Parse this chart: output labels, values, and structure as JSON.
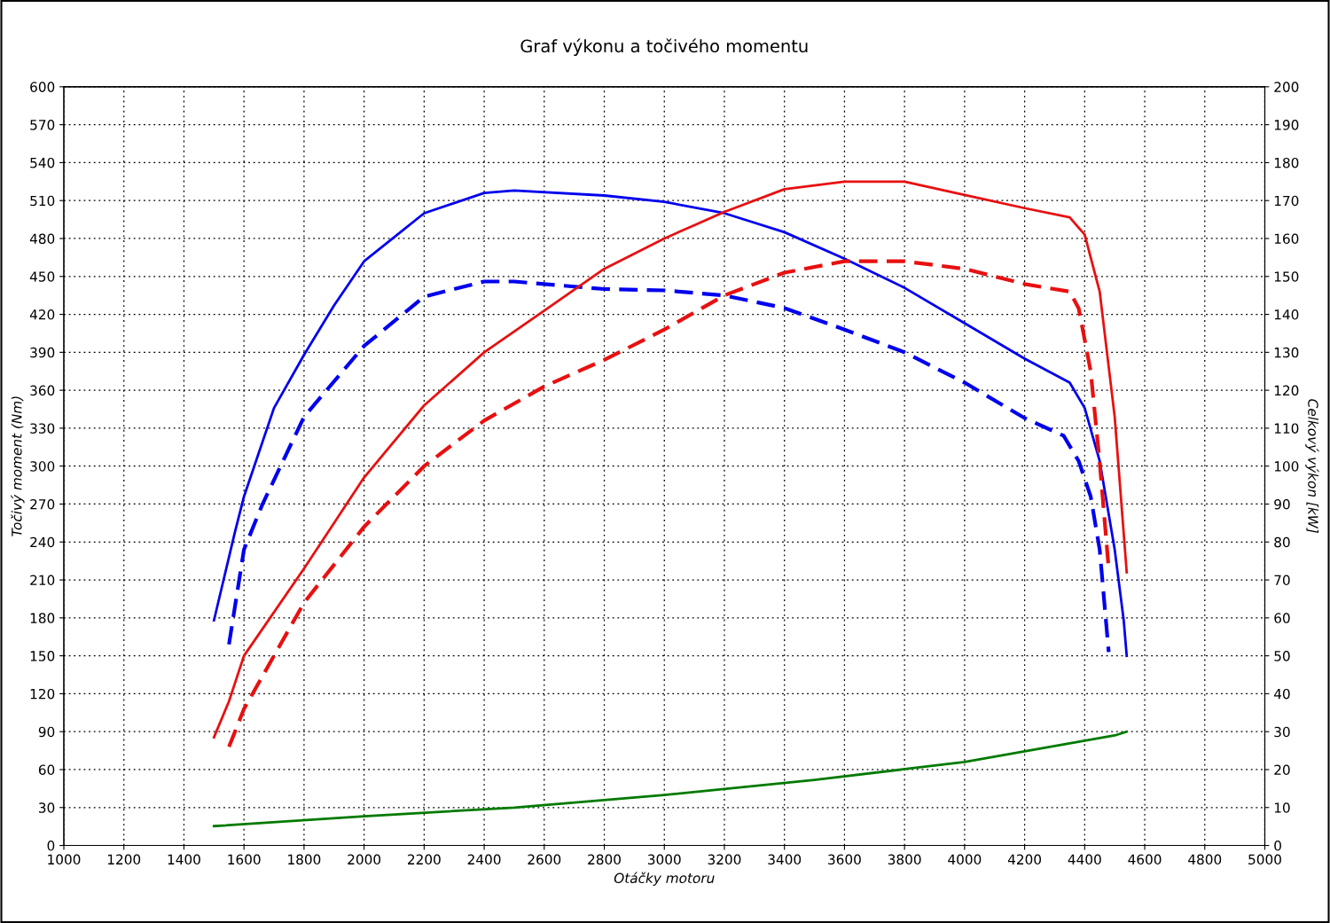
{
  "chart_data": {
    "type": "line",
    "title": "Graf výkonu a točivého momentu",
    "xlabel": "Otáčky motoru",
    "ylabel": "Točivý moment (Nm)",
    "y2label": "Celkový výkon [kW]",
    "xlim": [
      1000,
      5000
    ],
    "xticks": [
      1000,
      1200,
      1400,
      1600,
      1800,
      2000,
      2200,
      2400,
      2600,
      2800,
      3000,
      3200,
      3400,
      3600,
      3800,
      4000,
      4200,
      4400,
      4600,
      4800,
      5000
    ],
    "ylim": [
      0,
      600
    ],
    "yticks": [
      0,
      30,
      60,
      90,
      120,
      150,
      180,
      210,
      240,
      270,
      300,
      330,
      360,
      390,
      420,
      450,
      480,
      510,
      540,
      570,
      600
    ],
    "y2lim": [
      0,
      200
    ],
    "y2ticks": [
      0,
      10,
      20,
      30,
      40,
      50,
      60,
      70,
      80,
      90,
      100,
      110,
      120,
      130,
      140,
      150,
      160,
      170,
      180,
      190,
      200
    ],
    "grid": true,
    "legend": false,
    "series": [
      {
        "color": "#0000ee",
        "line_style": "solid",
        "axis": "y",
        "x": [
          1500,
          1570,
          1600,
          1700,
          1800,
          1900,
          2000,
          2200,
          2400,
          2500,
          2800,
          3000,
          3200,
          3400,
          3600,
          3800,
          4000,
          4200,
          4350,
          4400,
          4450,
          4500,
          4530,
          4540
        ],
        "values": [
          178,
          248,
          276,
          346,
          388,
          427,
          462,
          500,
          516,
          518,
          514,
          509,
          500,
          485,
          464,
          441,
          413,
          385,
          366,
          346,
          304,
          234,
          178,
          150
        ]
      },
      {
        "color": "#0000ee",
        "line_style": "dashed",
        "axis": "y",
        "x": [
          1550,
          1600,
          1660,
          1800,
          2000,
          2200,
          2400,
          2500,
          2800,
          3000,
          3200,
          3400,
          3600,
          3800,
          4000,
          4200,
          4330,
          4380,
          4420,
          4450,
          4480
        ],
        "values": [
          159,
          234,
          269,
          339,
          395,
          434,
          446,
          446,
          440,
          439,
          435,
          425,
          408,
          390,
          366,
          338,
          324,
          304,
          276,
          234,
          153
        ]
      },
      {
        "color": "#e81010",
        "line_style": "solid",
        "axis": "y2",
        "x": [
          1500,
          1550,
          1600,
          1800,
          2000,
          2200,
          2400,
          2600,
          2800,
          3000,
          3200,
          3400,
          3600,
          3800,
          4000,
          4200,
          4350,
          4400,
          4450,
          4500,
          4540
        ],
        "values": [
          28.5,
          38,
          50,
          73,
          97,
          116,
          130,
          141,
          152,
          160,
          167,
          173,
          175,
          175,
          171.5,
          168,
          165.6,
          161,
          146,
          113,
          72
        ]
      },
      {
        "color": "#e81010",
        "line_style": "dashed",
        "axis": "y2",
        "x": [
          1550,
          1600,
          1800,
          2000,
          2200,
          2400,
          2600,
          2800,
          3000,
          3200,
          3400,
          3600,
          3800,
          4000,
          4200,
          4350,
          4380,
          4420,
          4450,
          4480
        ],
        "values": [
          26,
          36,
          64,
          84,
          100,
          112,
          121,
          128,
          136,
          145,
          151,
          154,
          154,
          152,
          148,
          146,
          141.6,
          125,
          101,
          73
        ]
      },
      {
        "color": "#007a00",
        "line_style": "solid",
        "axis": "y2",
        "x": [
          1500,
          2000,
          2500,
          3000,
          3500,
          4000,
          4500,
          4540
        ],
        "values": [
          5.1,
          7.7,
          10,
          13.3,
          17.3,
          22,
          29,
          30
        ]
      }
    ]
  }
}
